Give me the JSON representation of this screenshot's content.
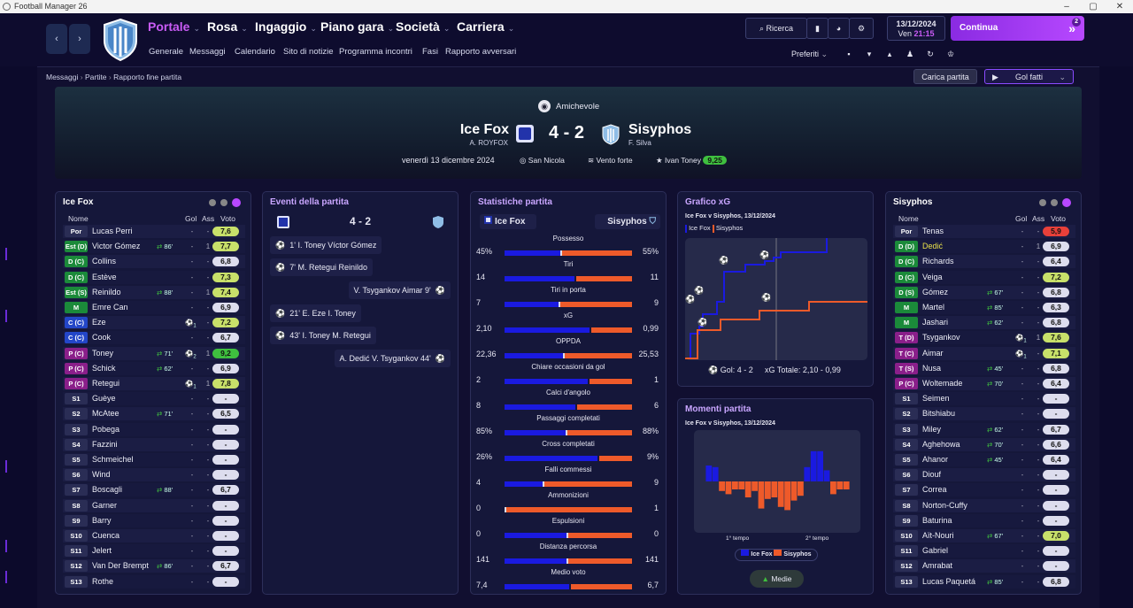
{
  "window": {
    "title": "Football Manager 26"
  },
  "nav": {
    "menus": [
      {
        "label": "Portale"
      },
      {
        "label": "Rosa"
      },
      {
        "label": "Ingaggio"
      },
      {
        "label": "Piano gara"
      },
      {
        "label": "Società"
      },
      {
        "label": "Carriera"
      }
    ],
    "submenu": [
      "Generale",
      "Messaggi",
      "Calendario",
      "Sito di notizie",
      "Programma incontri",
      "Fasi",
      "Rapporto avversari"
    ],
    "search": "Ricerca",
    "date": "13/12/2024",
    "day": "Ven",
    "time": "21:15",
    "continue": "Continua",
    "continue_badge": "2",
    "prefs": "Preferiti"
  },
  "breadcrumb": [
    "Messaggi",
    "Partite",
    "Rapporto fine partita"
  ],
  "actions": {
    "load": "Carica partita",
    "goals": "Gol fatti"
  },
  "match": {
    "competition": "Amichevole",
    "home": "Ice Fox",
    "home_manager": "A. ROYFOX",
    "away": "Sisyphos",
    "away_manager": "F. Silva",
    "score": "4 - 2",
    "date": "venerdì 13 dicembre 2024",
    "stadium": "San Nicola",
    "weather": "Vento forte",
    "motm": "Ivan Toney",
    "motm_rating": "9,25"
  },
  "headers": {
    "name": "Nome",
    "goals": "Gol",
    "assists": "Ass",
    "rating": "Voto"
  },
  "home_players": [
    {
      "pos": "Por",
      "name": "Lucas Perri",
      "g": "-",
      "a": "-",
      "v": "7,6",
      "pc": "#2a2d55",
      "vc": "#c8e06a"
    },
    {
      "pos": "Est (D)",
      "name": "Victor Gómez",
      "sub": "86'",
      "g": "-",
      "a": "1",
      "v": "7,7",
      "pc": "#1b8a3a",
      "vc": "#c8e06a"
    },
    {
      "pos": "D (C)",
      "name": "Collins",
      "g": "-",
      "a": "-",
      "v": "6,8",
      "pc": "#1b8a3a",
      "vc": "#dde"
    },
    {
      "pos": "D (C)",
      "name": "Estève",
      "g": "-",
      "a": "-",
      "v": "7,3",
      "pc": "#1b8a3a",
      "vc": "#c8e06a"
    },
    {
      "pos": "Est (S)",
      "name": "Reinildo",
      "sub": "88'",
      "g": "-",
      "a": "1",
      "v": "7,4",
      "pc": "#1b8a3a",
      "vc": "#c8e06a"
    },
    {
      "pos": "M",
      "name": "Emre Can",
      "g": "-",
      "a": "-",
      "v": "6,9",
      "pc": "#1b8a3a",
      "vc": "#dde"
    },
    {
      "pos": "C (C)",
      "name": "Eze",
      "ball": "1",
      "g": "",
      "a": "-",
      "v": "7,2",
      "pc": "#2346c8",
      "vc": "#c8e06a"
    },
    {
      "pos": "C (C)",
      "name": "Cook",
      "g": "-",
      "a": "-",
      "v": "6,7",
      "pc": "#2346c8",
      "vc": "#dde"
    },
    {
      "pos": "P (C)",
      "name": "Toney",
      "sub": "71'",
      "ball": "2",
      "g": "",
      "a": "1",
      "v": "9,2",
      "pc": "#8a1f8a",
      "vc": "#3fbf3f"
    },
    {
      "pos": "P (C)",
      "name": "Schick",
      "sub": "62'",
      "g": "-",
      "a": "-",
      "v": "6,9",
      "pc": "#8a1f8a",
      "vc": "#dde"
    },
    {
      "pos": "P (C)",
      "name": "Retegui",
      "ball": "1",
      "g": "",
      "a": "1",
      "v": "7,8",
      "pc": "#8a1f8a",
      "vc": "#c8e06a"
    },
    {
      "pos": "S1",
      "name": "Guèye",
      "g": "-",
      "a": "-",
      "v": "-",
      "pc": "#2a2d55",
      "vc": "#dde"
    },
    {
      "pos": "S2",
      "name": "McAtee",
      "sub": "71'",
      "g": "-",
      "a": "-",
      "v": "6,5",
      "pc": "#2a2d55",
      "vc": "#dde"
    },
    {
      "pos": "S3",
      "name": "Pobega",
      "g": "-",
      "a": "-",
      "v": "-",
      "pc": "#2a2d55",
      "vc": "#dde"
    },
    {
      "pos": "S4",
      "name": "Fazzini",
      "g": "-",
      "a": "-",
      "v": "-",
      "pc": "#2a2d55",
      "vc": "#dde"
    },
    {
      "pos": "S5",
      "name": "Schmeichel",
      "g": "-",
      "a": "-",
      "v": "-",
      "pc": "#2a2d55",
      "vc": "#dde"
    },
    {
      "pos": "S6",
      "name": "Wind",
      "g": "-",
      "a": "-",
      "v": "-",
      "pc": "#2a2d55",
      "vc": "#dde"
    },
    {
      "pos": "S7",
      "name": "Boscagli",
      "sub": "88'",
      "g": "-",
      "a": "-",
      "v": "6,7",
      "pc": "#2a2d55",
      "vc": "#dde"
    },
    {
      "pos": "S8",
      "name": "Garner",
      "g": "-",
      "a": "-",
      "v": "-",
      "pc": "#2a2d55",
      "vc": "#dde"
    },
    {
      "pos": "S9",
      "name": "Barry",
      "g": "-",
      "a": "-",
      "v": "-",
      "pc": "#2a2d55",
      "vc": "#dde"
    },
    {
      "pos": "S10",
      "name": "Cuenca",
      "g": "-",
      "a": "-",
      "v": "-",
      "pc": "#2a2d55",
      "vc": "#dde"
    },
    {
      "pos": "S11",
      "name": "Jelert",
      "g": "-",
      "a": "-",
      "v": "-",
      "pc": "#2a2d55",
      "vc": "#dde"
    },
    {
      "pos": "S12",
      "name": "Van Der Brempt",
      "sub": "86'",
      "g": "-",
      "a": "-",
      "v": "6,7",
      "pc": "#2a2d55",
      "vc": "#dde"
    },
    {
      "pos": "S13",
      "name": "Rothe",
      "g": "-",
      "a": "-",
      "v": "-",
      "pc": "#2a2d55",
      "vc": "#dde"
    }
  ],
  "away_players": [
    {
      "pos": "Por",
      "name": "Tenas",
      "g": "-",
      "a": "-",
      "v": "5,9",
      "pc": "#2a2d55",
      "vc": "#e8403a"
    },
    {
      "pos": "D (D)",
      "name": "Dedić",
      "g": "-",
      "a": "1",
      "v": "6,9",
      "pc": "#1b8a3a",
      "vc": "#dde",
      "nc": "#e8e04a"
    },
    {
      "pos": "D (C)",
      "name": "Richards",
      "g": "-",
      "a": "-",
      "v": "6,4",
      "pc": "#1b8a3a",
      "vc": "#dde"
    },
    {
      "pos": "D (C)",
      "name": "Veiga",
      "g": "-",
      "a": "-",
      "v": "7,2",
      "pc": "#1b8a3a",
      "vc": "#c8e06a"
    },
    {
      "pos": "D (S)",
      "name": "Gómez",
      "sub": "67'",
      "g": "-",
      "a": "-",
      "v": "6,8",
      "pc": "#1b8a3a",
      "vc": "#dde"
    },
    {
      "pos": "M",
      "name": "Martel",
      "sub": "85'",
      "g": "-",
      "a": "-",
      "v": "6,3",
      "pc": "#1b8a3a",
      "vc": "#dde"
    },
    {
      "pos": "M",
      "name": "Jashari",
      "sub": "62'",
      "g": "-",
      "a": "-",
      "v": "6,8",
      "pc": "#1b8a3a",
      "vc": "#dde"
    },
    {
      "pos": "T (D)",
      "name": "Tsygankov",
      "ball": "1",
      "g": "",
      "a": "1",
      "v": "7,6",
      "pc": "#8a1f8a",
      "vc": "#c8e06a"
    },
    {
      "pos": "T (C)",
      "name": "Aimar",
      "ball": "1",
      "g": "",
      "a": "-",
      "v": "7,1",
      "pc": "#8a1f8a",
      "vc": "#c8e06a"
    },
    {
      "pos": "T (S)",
      "name": "Nusa",
      "sub": "45'",
      "g": "-",
      "a": "-",
      "v": "6,8",
      "pc": "#8a1f8a",
      "vc": "#dde"
    },
    {
      "pos": "P (C)",
      "name": "Woltemade",
      "sub": "70'",
      "g": "-",
      "a": "-",
      "v": "6,4",
      "pc": "#8a1f8a",
      "vc": "#dde"
    },
    {
      "pos": "S1",
      "name": "Seimen",
      "g": "-",
      "a": "-",
      "v": "-",
      "pc": "#2a2d55",
      "vc": "#dde"
    },
    {
      "pos": "S2",
      "name": "Bitshiabu",
      "g": "-",
      "a": "-",
      "v": "-",
      "pc": "#2a2d55",
      "vc": "#dde"
    },
    {
      "pos": "S3",
      "name": "Miley",
      "sub": "62'",
      "g": "-",
      "a": "-",
      "v": "6,7",
      "pc": "#2a2d55",
      "vc": "#dde"
    },
    {
      "pos": "S4",
      "name": "Aghehowa",
      "sub": "70'",
      "g": "-",
      "a": "-",
      "v": "6,6",
      "pc": "#2a2d55",
      "vc": "#dde"
    },
    {
      "pos": "S5",
      "name": "Ahanor",
      "sub": "45'",
      "g": "-",
      "a": "-",
      "v": "6,4",
      "pc": "#2a2d55",
      "vc": "#dde"
    },
    {
      "pos": "S6",
      "name": "Diouf",
      "g": "-",
      "a": "-",
      "v": "-",
      "pc": "#2a2d55",
      "vc": "#dde"
    },
    {
      "pos": "S7",
      "name": "Correa",
      "g": "-",
      "a": "-",
      "v": "-",
      "pc": "#2a2d55",
      "vc": "#dde"
    },
    {
      "pos": "S8",
      "name": "Norton-Cuffy",
      "g": "-",
      "a": "-",
      "v": "-",
      "pc": "#2a2d55",
      "vc": "#dde"
    },
    {
      "pos": "S9",
      "name": "Baturina",
      "g": "-",
      "a": "-",
      "v": "-",
      "pc": "#2a2d55",
      "vc": "#dde"
    },
    {
      "pos": "S10",
      "name": "Aït-Nouri",
      "sub": "67'",
      "g": "-",
      "a": "-",
      "v": "7,0",
      "pc": "#2a2d55",
      "vc": "#c8e06a"
    },
    {
      "pos": "S11",
      "name": "Gabriel",
      "g": "-",
      "a": "-",
      "v": "-",
      "pc": "#2a2d55",
      "vc": "#dde"
    },
    {
      "pos": "S12",
      "name": "Amrabat",
      "g": "-",
      "a": "-",
      "v": "-",
      "pc": "#2a2d55",
      "vc": "#dde"
    },
    {
      "pos": "S13",
      "name": "Lucas Paquetá",
      "sub": "85'",
      "g": "-",
      "a": "-",
      "v": "6,8",
      "pc": "#2a2d55",
      "vc": "#dde"
    }
  ],
  "events": {
    "title": "Eventi della partita",
    "score": "4 - 2",
    "list": [
      {
        "side": "home",
        "text": "1' I. Toney Víctor Gómez"
      },
      {
        "side": "home",
        "text": "7' M. Retegui Reinildo"
      },
      {
        "side": "away",
        "text": "V. Tsygankov Aimar 9'"
      },
      {
        "side": "home",
        "text": "21' E. Eze I. Toney"
      },
      {
        "side": "home",
        "text": "43' I. Toney M. Retegui"
      },
      {
        "side": "away",
        "text": "A. Dedić V. Tsygankov 44'"
      }
    ]
  },
  "stats": {
    "title": "Statistiche partita",
    "home": "Ice Fox",
    "away": "Sisyphos",
    "rows": [
      {
        "label": "Possesso",
        "h": "45%",
        "a": "55%",
        "hp": 0.45,
        "ap": 0.55
      },
      {
        "label": "Tiri",
        "h": "14",
        "a": "11",
        "hp": 0.56,
        "ap": 0.44
      },
      {
        "label": "Tiri in porta",
        "h": "7",
        "a": "9",
        "hp": 0.44,
        "ap": 0.56
      },
      {
        "label": "xG",
        "h": "2,10",
        "a": "0,99",
        "hp": 0.68,
        "ap": 0.32
      },
      {
        "label": "OPPDA",
        "h": "22,36",
        "a": "25,53",
        "hp": 0.47,
        "ap": 0.53
      },
      {
        "label": "Chiare occasioni da gol",
        "h": "2",
        "a": "1",
        "hp": 0.67,
        "ap": 0.33
      },
      {
        "label": "Calci d'angolo",
        "h": "8",
        "a": "6",
        "hp": 0.57,
        "ap": 0.43
      },
      {
        "label": "Passaggi completati",
        "h": "85%",
        "a": "88%",
        "hp": 0.49,
        "ap": 0.51
      },
      {
        "label": "Cross completati",
        "h": "26%",
        "a": "9%",
        "hp": 0.74,
        "ap": 0.26
      },
      {
        "label": "Falli commessi",
        "h": "4",
        "a": "9",
        "hp": 0.31,
        "ap": 0.69
      },
      {
        "label": "Ammonizioni",
        "h": "0",
        "a": "1",
        "hp": 0.0,
        "ap": 1.0
      },
      {
        "label": "Espulsioni",
        "h": "0",
        "a": "0",
        "hp": 0.5,
        "ap": 0.5
      },
      {
        "label": "Distanza percorsa",
        "h": "141",
        "a": "141",
        "hp": 0.5,
        "ap": 0.5
      },
      {
        "label": "Medio voto",
        "h": "7,4",
        "a": "6,7",
        "hp": 0.52,
        "ap": 0.48
      }
    ]
  },
  "xg": {
    "title": "Grafico xG",
    "subtitle": "Ice Fox v Sisyphos, 13/12/2024",
    "legend_home": "Ice Fox",
    "legend_away": "Sisyphos",
    "goals": "Gol: 4 - 2",
    "total": "xG Totale: 2,10 - 0,99"
  },
  "momentum": {
    "title": "Momenti partita",
    "subtitle": "Ice Fox v Sisyphos, 13/12/2024",
    "first": "1° tempo",
    "second": "2° tempo",
    "legend_home": "Ice Fox",
    "legend_away": "Sisyphos",
    "button": "Medie",
    "values": [
      0,
      0.5,
      0.45,
      -0.3,
      -0.4,
      -0.25,
      -0.25,
      -0.5,
      -0.3,
      -0.85,
      -0.55,
      -0.5,
      -0.8,
      -0.9,
      -0.6,
      -0.45,
      0.45,
      0.95,
      0.95,
      0.35,
      -0.4,
      -0.25,
      -0.25
    ]
  },
  "colors": {
    "home": "#1a1ae0",
    "away": "#ee5a2a",
    "accent": "#b748ff"
  }
}
